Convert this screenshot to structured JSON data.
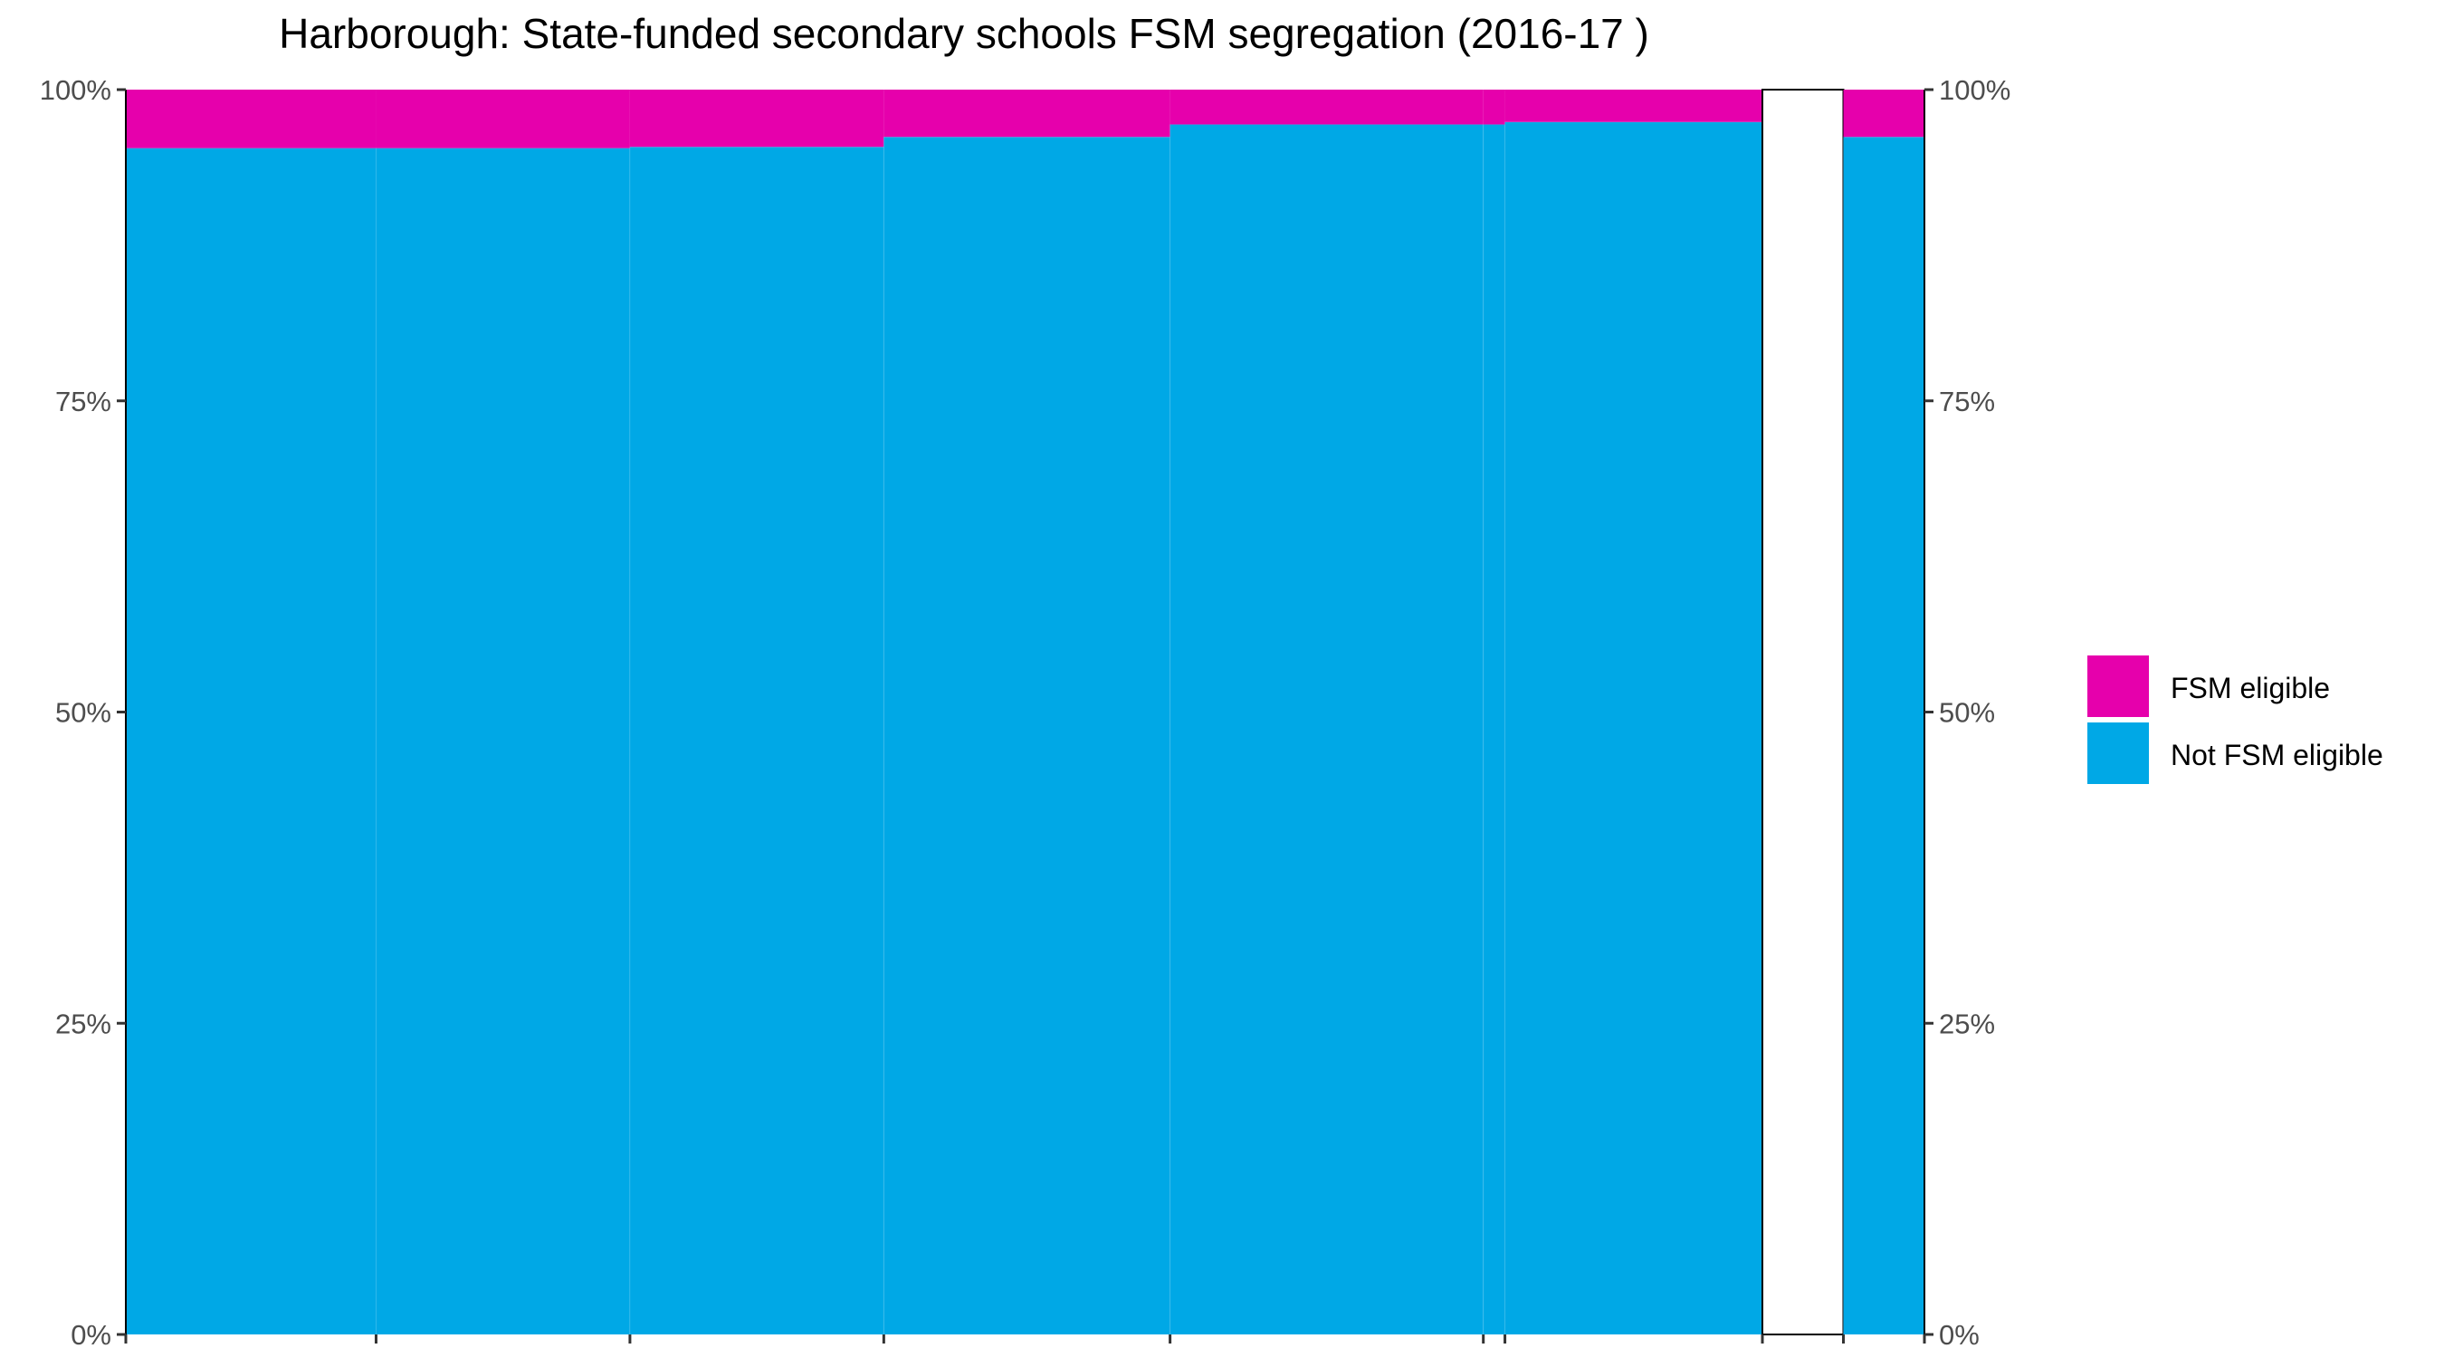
{
  "chart_data": {
    "type": "bar",
    "variant": "stacked-100-percent, variable-width (mosaic)",
    "title": "Harborough: State-funded secondary schools FSM segregation (2016-17 )",
    "xlabel": "",
    "ylabel": "",
    "ylim": [
      0,
      1
    ],
    "y_ticks": [
      "0%",
      "25%",
      "50%",
      "75%",
      "100%"
    ],
    "y_tick_values": [
      0,
      0.25,
      0.5,
      0.75,
      1
    ],
    "secondary_y_axis": true,
    "grid": false,
    "legend_position": "right",
    "series": [
      {
        "name": "FSM eligible",
        "color": "#E600AC",
        "values": [
          0.047,
          0.047,
          0.046,
          0.038,
          0.028,
          0.028,
          0.026,
          0.0,
          0.038
        ]
      },
      {
        "name": "Not FSM eligible",
        "color": "#00A8E6",
        "values": [
          0.953,
          0.953,
          0.954,
          0.962,
          0.972,
          0.972,
          0.974,
          0.0,
          0.962
        ]
      }
    ],
    "column_widths": [
      0.139,
      0.141,
      0.141,
      0.159,
      0.174,
      0.012,
      0.143,
      0.045,
      0.045
    ],
    "empty_columns": [
      7
    ]
  }
}
